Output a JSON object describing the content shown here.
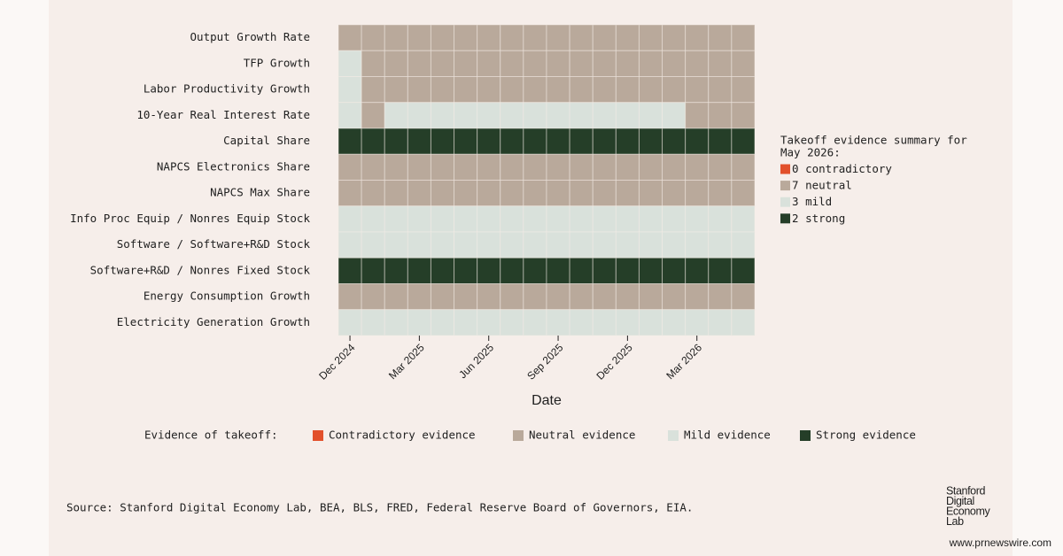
{
  "chart_data": {
    "type": "heatmap",
    "x_label": "Date",
    "x": [
      "Dec 2024",
      null,
      null,
      "Mar 2025",
      null,
      null,
      "Jun 2025",
      null,
      null,
      "Sep 2025",
      null,
      null,
      "Dec 2025",
      null,
      null,
      "Mar 2026",
      null,
      null
    ],
    "levels": [
      "contradictory",
      "neutral",
      "mild",
      "strong"
    ],
    "colors": [
      "#e2502b",
      "#b9a99b",
      "#d9e1db",
      "#253e28"
    ],
    "series": [
      {
        "name": "Output Growth Rate",
        "values": [
          "neutral",
          "neutral",
          "neutral",
          "neutral",
          "neutral",
          "neutral",
          "neutral",
          "neutral",
          "neutral",
          "neutral",
          "neutral",
          "neutral",
          "neutral",
          "neutral",
          "neutral",
          "neutral",
          "neutral",
          "neutral"
        ]
      },
      {
        "name": "TFP Growth",
        "values": [
          "mild",
          "neutral",
          "neutral",
          "neutral",
          "neutral",
          "neutral",
          "neutral",
          "neutral",
          "neutral",
          "neutral",
          "neutral",
          "neutral",
          "neutral",
          "neutral",
          "neutral",
          "neutral",
          "neutral",
          "neutral"
        ]
      },
      {
        "name": "Labor Productivity Growth",
        "values": [
          "mild",
          "neutral",
          "neutral",
          "neutral",
          "neutral",
          "neutral",
          "neutral",
          "neutral",
          "neutral",
          "neutral",
          "neutral",
          "neutral",
          "neutral",
          "neutral",
          "neutral",
          "neutral",
          "neutral",
          "neutral"
        ]
      },
      {
        "name": "10-Year Real Interest Rate",
        "values": [
          "mild",
          "neutral",
          "mild",
          "mild",
          "mild",
          "mild",
          "mild",
          "mild",
          "mild",
          "mild",
          "mild",
          "mild",
          "mild",
          "mild",
          "mild",
          "neutral",
          "neutral",
          "neutral"
        ]
      },
      {
        "name": "Capital Share",
        "values": [
          "strong",
          "strong",
          "strong",
          "strong",
          "strong",
          "strong",
          "strong",
          "strong",
          "strong",
          "strong",
          "strong",
          "strong",
          "strong",
          "strong",
          "strong",
          "strong",
          "strong",
          "strong"
        ]
      },
      {
        "name": "NAPCS Electronics Share",
        "values": [
          "neutral",
          "neutral",
          "neutral",
          "neutral",
          "neutral",
          "neutral",
          "neutral",
          "neutral",
          "neutral",
          "neutral",
          "neutral",
          "neutral",
          "neutral",
          "neutral",
          "neutral",
          "neutral",
          "neutral",
          "neutral"
        ]
      },
      {
        "name": "NAPCS Max Share",
        "values": [
          "neutral",
          "neutral",
          "neutral",
          "neutral",
          "neutral",
          "neutral",
          "neutral",
          "neutral",
          "neutral",
          "neutral",
          "neutral",
          "neutral",
          "neutral",
          "neutral",
          "neutral",
          "neutral",
          "neutral",
          "neutral"
        ]
      },
      {
        "name": "Info Proc Equip / Nonres Equip Stock",
        "values": [
          "mild",
          "mild",
          "mild",
          "mild",
          "mild",
          "mild",
          "mild",
          "mild",
          "mild",
          "mild",
          "mild",
          "mild",
          "mild",
          "mild",
          "mild",
          "mild",
          "mild",
          "mild"
        ]
      },
      {
        "name": "Software / Software+R&D Stock",
        "values": [
          "mild",
          "mild",
          "mild",
          "mild",
          "mild",
          "mild",
          "mild",
          "mild",
          "mild",
          "mild",
          "mild",
          "mild",
          "mild",
          "mild",
          "mild",
          "mild",
          "mild",
          "mild"
        ]
      },
      {
        "name": "Software+R&D / Nonres Fixed Stock",
        "values": [
          "strong",
          "strong",
          "strong",
          "strong",
          "strong",
          "strong",
          "strong",
          "strong",
          "strong",
          "strong",
          "strong",
          "strong",
          "strong",
          "strong",
          "strong",
          "strong",
          "strong",
          "strong"
        ]
      },
      {
        "name": "Energy Consumption Growth",
        "values": [
          "neutral",
          "neutral",
          "neutral",
          "neutral",
          "neutral",
          "neutral",
          "neutral",
          "neutral",
          "neutral",
          "neutral",
          "neutral",
          "neutral",
          "neutral",
          "neutral",
          "neutral",
          "neutral",
          "neutral",
          "neutral"
        ]
      },
      {
        "name": "Electricity Generation Growth",
        "values": [
          "mild",
          "mild",
          "mild",
          "mild",
          "mild",
          "mild",
          "mild",
          "mild",
          "mild",
          "mild",
          "mild",
          "mild",
          "mild",
          "mild",
          "mild",
          "mild",
          "mild",
          "mild"
        ]
      }
    ],
    "summary": {
      "title_lines": [
        "Takeoff evidence summary for",
        "May 2026:"
      ],
      "counts": [
        0,
        7,
        3,
        2
      ]
    },
    "legend": {
      "title": "Evidence of takeoff:",
      "labels": [
        "Contradictory evidence",
        "Neutral evidence",
        "Mild evidence",
        "Strong evidence"
      ]
    },
    "source": "Source: Stanford Digital Economy Lab, BEA, BLS, FRED, Federal Reserve Board of Governors, EIA."
  },
  "logo": [
    "Stanford",
    "Digital",
    "Economy",
    "Lab"
  ],
  "watermark": "www.prnewswire.com"
}
